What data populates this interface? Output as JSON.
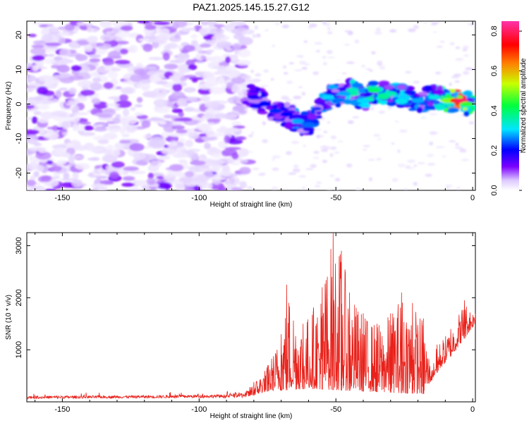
{
  "figure_title": "PAZ1.2025.145.15.27.G12",
  "chart_data": [
    {
      "type": "heatmap",
      "xlabel": "Height of straight line (km)",
      "ylabel": "Frequency (Hz)",
      "xlim": [
        -163,
        1
      ],
      "ylim": [
        -25,
        24
      ],
      "xticks": [
        -150,
        -100,
        -50,
        0
      ],
      "yticks": [
        -20,
        -10,
        0,
        10,
        20
      ],
      "colorbar": {
        "label": "Normalized spectral amplitude",
        "range": [
          0.0,
          0.85
        ],
        "ticks": [
          0.0,
          0.2,
          0.4,
          0.6,
          0.8
        ],
        "colors": [
          "#ffffff",
          "#7b00ff",
          "#0000ff",
          "#00e5ff",
          "#00ff40",
          "#c8ff00",
          "#ff8000",
          "#ff0000",
          "#ff33aa"
        ]
      },
      "regions": [
        {
          "name": "noise",
          "x": [
            -163,
            -82
          ],
          "y": [
            -25,
            24
          ],
          "level": 0.08
        },
        {
          "name": "signal_trace",
          "x_start": -82,
          "x_end": 0,
          "freq_start": -2,
          "freq_end": 1,
          "peak_level": 0.85
        }
      ],
      "trace_points": [
        {
          "x": -80,
          "y": 2,
          "v": 0.18
        },
        {
          "x": -76,
          "y": 0,
          "v": 0.2
        },
        {
          "x": -72,
          "y": -2,
          "v": 0.22
        },
        {
          "x": -68,
          "y": -3,
          "v": 0.2
        },
        {
          "x": -64,
          "y": -5,
          "v": 0.28
        },
        {
          "x": -60,
          "y": -6,
          "v": 0.25
        },
        {
          "x": -53,
          "y": 2,
          "v": 0.3
        },
        {
          "x": -47,
          "y": 3,
          "v": 0.28
        },
        {
          "x": -44,
          "y": 4,
          "v": 0.35
        },
        {
          "x": -40,
          "y": 1,
          "v": 0.3
        },
        {
          "x": -36,
          "y": 4,
          "v": 0.4
        },
        {
          "x": -30,
          "y": 3,
          "v": 0.35
        },
        {
          "x": -25,
          "y": 2,
          "v": 0.3
        },
        {
          "x": -20,
          "y": 1,
          "v": 0.28
        },
        {
          "x": -14,
          "y": 2,
          "v": 0.32
        },
        {
          "x": -9,
          "y": 1,
          "v": 0.5
        },
        {
          "x": -6,
          "y": 1,
          "v": 0.7
        },
        {
          "x": -4,
          "y": 1,
          "v": 0.8
        },
        {
          "x": -2,
          "y": 0,
          "v": 0.45
        }
      ]
    },
    {
      "type": "line",
      "xlabel": "Height of straight line (km)",
      "ylabel": "SNR (10 * v/v)",
      "xlim": [
        -163,
        1
      ],
      "ylim": [
        0,
        3250
      ],
      "xticks": [
        -150,
        -100,
        -50,
        0
      ],
      "yticks": [
        1000,
        2000,
        3000
      ],
      "series": [
        {
          "color": "#e8211a",
          "envelope": [
            {
              "x": -163,
              "y": 120
            },
            {
              "x": -120,
              "y": 130
            },
            {
              "x": -90,
              "y": 150
            },
            {
              "x": -83,
              "y": 200
            },
            {
              "x": -80,
              "y": 380
            },
            {
              "x": -75,
              "y": 700
            },
            {
              "x": -70,
              "y": 1300
            },
            {
              "x": -68,
              "y": 2250
            },
            {
              "x": -62,
              "y": 1500
            },
            {
              "x": -55,
              "y": 2200
            },
            {
              "x": -51,
              "y": 3250
            },
            {
              "x": -48,
              "y": 2900
            },
            {
              "x": -45,
              "y": 2100
            },
            {
              "x": -40,
              "y": 1700
            },
            {
              "x": -35,
              "y": 1500
            },
            {
              "x": -30,
              "y": 1700
            },
            {
              "x": -26,
              "y": 2100
            },
            {
              "x": -22,
              "y": 1900
            },
            {
              "x": -18,
              "y": 1600
            },
            {
              "x": -15,
              "y": 600
            },
            {
              "x": -13,
              "y": 1100
            },
            {
              "x": -8,
              "y": 1400
            },
            {
              "x": -3,
              "y": 1950
            },
            {
              "x": 1,
              "y": 1700
            }
          ],
          "floor": [
            {
              "x": -163,
              "y": 60
            },
            {
              "x": -83,
              "y": 80
            },
            {
              "x": -75,
              "y": 200
            },
            {
              "x": -60,
              "y": 250
            },
            {
              "x": -40,
              "y": 200
            },
            {
              "x": -18,
              "y": 150
            },
            {
              "x": -14,
              "y": 500
            },
            {
              "x": -6,
              "y": 1000
            },
            {
              "x": 1,
              "y": 1500
            }
          ]
        }
      ]
    }
  ]
}
